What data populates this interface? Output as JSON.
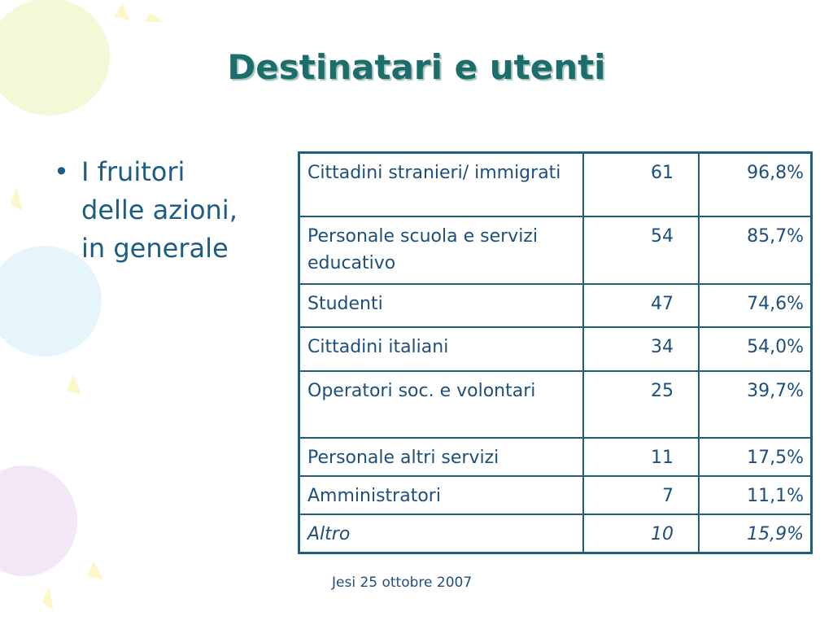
{
  "header": {
    "title": "Destinatari e utenti"
  },
  "bullets": [
    "I fruitori delle azioni, in generale"
  ],
  "table": {
    "rows": [
      [
        "Cittadini stranieri/ immigrati",
        61,
        "96,8%"
      ],
      [
        "Personale scuola e servizi educativo",
        54,
        "85,7%"
      ],
      [
        "Studenti",
        47,
        "74,6%"
      ],
      [
        "Cittadini italiani",
        34,
        "54,0%"
      ],
      [
        "Operatori soc. e volontari",
        25,
        "39,7%"
      ],
      [
        "Personale altri servizi",
        11,
        "17,5%"
      ],
      [
        "Amministratori",
        7,
        "11,1%"
      ],
      [
        "Altro",
        10,
        "15,9%"
      ]
    ]
  },
  "footer": {
    "text": "Jesi 25 ottobre 2007"
  }
}
